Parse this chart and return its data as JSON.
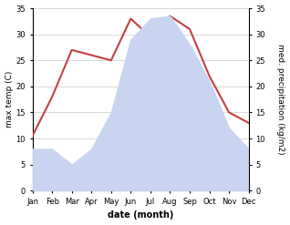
{
  "months": [
    "Jan",
    "Feb",
    "Mar",
    "Apr",
    "May",
    "Jun",
    "Jul",
    "Aug",
    "Sep",
    "Oct",
    "Nov",
    "Dec"
  ],
  "month_indices": [
    1,
    2,
    3,
    4,
    5,
    6,
    7,
    8,
    9,
    10,
    11,
    12
  ],
  "max_temp": [
    10.5,
    18.0,
    27.0,
    26.0,
    25.0,
    33.0,
    29.5,
    33.5,
    31.0,
    22.0,
    15.0,
    13.0
  ],
  "precipitation": [
    8.0,
    8.0,
    5.0,
    8.0,
    15.0,
    29.0,
    33.0,
    33.5,
    28.0,
    21.0,
    12.0,
    8.0
  ],
  "temp_color": "#c44040",
  "precip_fill_color": "#c8d4f0",
  "ylim": [
    0,
    35
  ],
  "yticks": [
    0,
    5,
    10,
    15,
    20,
    25,
    30,
    35
  ],
  "xlabel": "date (month)",
  "ylabel_left": "max temp (C)",
  "ylabel_right": "med. precipitation (kg/m2)",
  "background_color": "#ffffff",
  "grid_color": "#cccccc",
  "tick_fontsize": 6,
  "label_fontsize": 6.5,
  "xlabel_fontsize": 7
}
